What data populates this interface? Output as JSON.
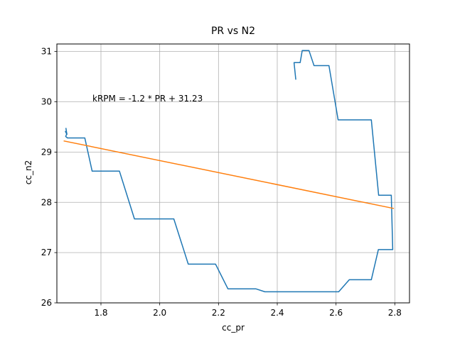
{
  "chart_data": {
    "type": "line",
    "title": "PR vs N2",
    "xlabel": "cc_pr",
    "ylabel": "cc_n2",
    "xlim": [
      1.65,
      2.85
    ],
    "ylim": [
      26.0,
      31.15
    ],
    "xticks": [
      1.8,
      2.0,
      2.2,
      2.4,
      2.6,
      2.8
    ],
    "yticks": [
      26,
      27,
      28,
      29,
      30,
      31
    ],
    "xtick_labels": [
      "1.8",
      "2.0",
      "2.2",
      "2.4",
      "2.6",
      "2.8"
    ],
    "ytick_labels": [
      "26",
      "27",
      "28",
      "29",
      "30",
      "31"
    ],
    "grid": true,
    "annotation": "kRPM = -1.2 * PR + 31.23",
    "series": [
      {
        "color": "#1f77b4",
        "points": [
          [
            1.681,
            29.47
          ],
          [
            1.684,
            29.35
          ],
          [
            1.679,
            29.41
          ],
          [
            1.684,
            29.37
          ],
          [
            1.68,
            29.31
          ],
          [
            1.686,
            29.28
          ],
          [
            1.745,
            29.28
          ],
          [
            1.77,
            28.62
          ],
          [
            1.863,
            28.62
          ],
          [
            1.914,
            27.67
          ],
          [
            2.048,
            27.67
          ],
          [
            2.097,
            26.77
          ],
          [
            2.19,
            26.77
          ],
          [
            2.232,
            26.28
          ],
          [
            2.327,
            26.28
          ],
          [
            2.358,
            26.22
          ],
          [
            2.609,
            26.22
          ],
          [
            2.645,
            26.46
          ],
          [
            2.72,
            26.46
          ],
          [
            2.744,
            27.06
          ],
          [
            2.793,
            27.06
          ],
          [
            2.788,
            28.14
          ],
          [
            2.745,
            28.14
          ],
          [
            2.72,
            29.64
          ],
          [
            2.607,
            29.64
          ],
          [
            2.576,
            30.72
          ],
          [
            2.525,
            30.72
          ],
          [
            2.508,
            31.02
          ],
          [
            2.485,
            31.02
          ],
          [
            2.478,
            30.78
          ],
          [
            2.457,
            30.78
          ],
          [
            2.463,
            30.45
          ]
        ]
      },
      {
        "color": "#ff7f0e",
        "fit": {
          "slope": -1.2,
          "intercept": 31.23
        },
        "points": [
          [
            1.675,
            29.22
          ],
          [
            2.795,
            27.88
          ]
        ]
      }
    ]
  }
}
